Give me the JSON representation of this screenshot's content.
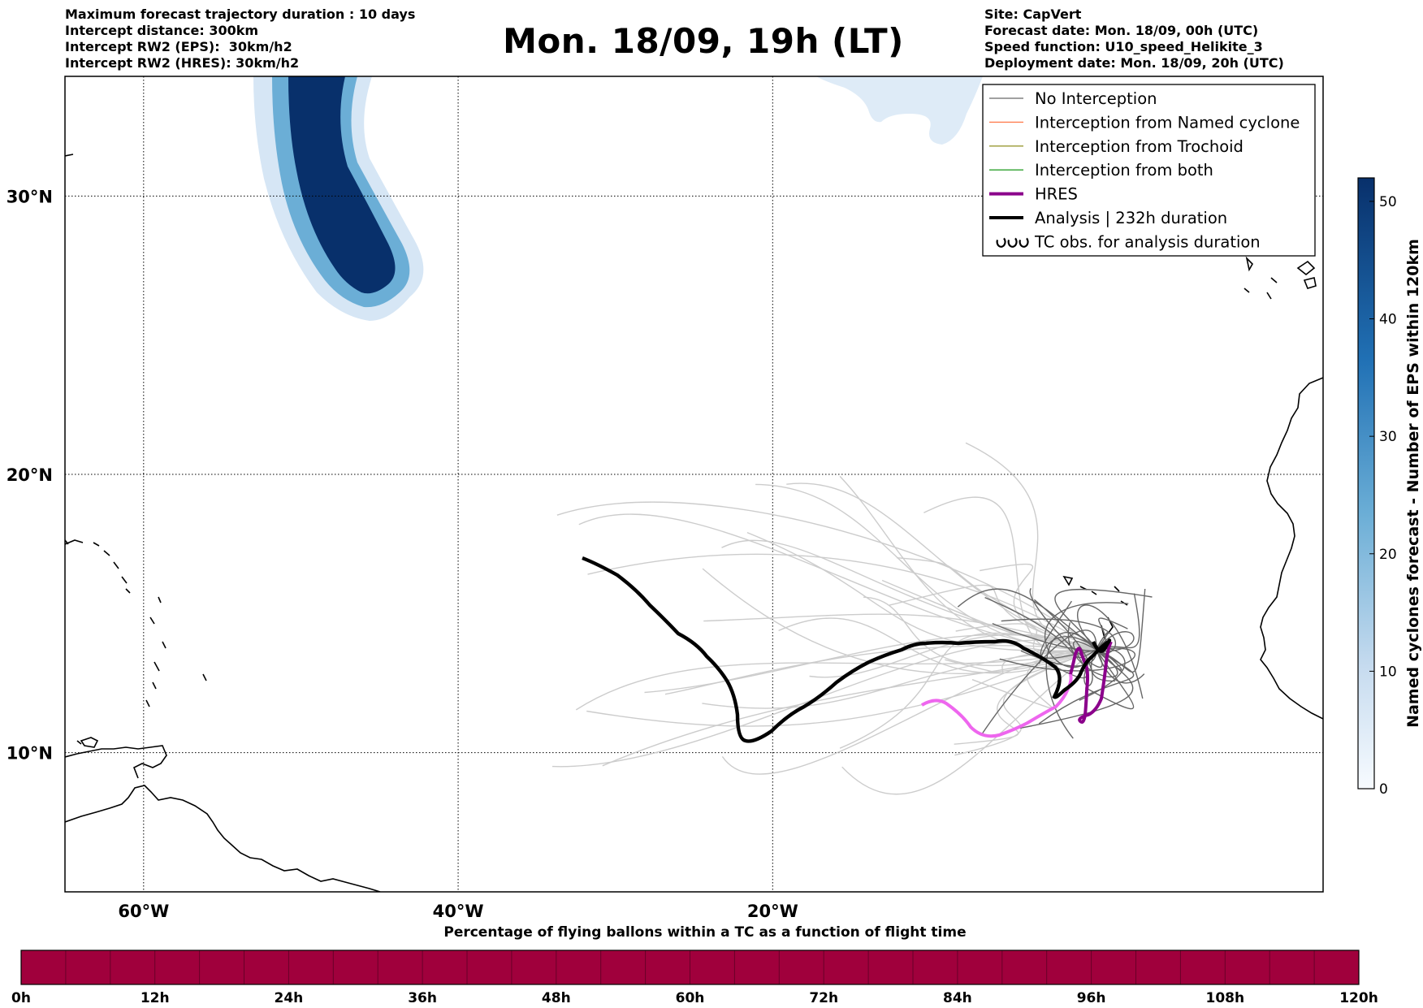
{
  "header": {
    "title": "Mon. 18/09, 19h (LT)",
    "left_lines": [
      "Maximum forecast trajectory duration : 10 days",
      "Intercept distance: 300km",
      "Intercept RW2 (EPS):  30km/h2",
      "Intercept RW2 (HRES): 30km/h2"
    ],
    "right_lines": [
      "Site: CapVert",
      "Forecast date: Mon. 18/09, 00h (UTC)",
      "Speed function: U10_speed_Helikite_3",
      "Deployment date: Mon. 18/09, 20h (UTC)"
    ]
  },
  "map": {
    "lon_range": [
      -65,
      15
    ],
    "lat_range": [
      5,
      34.3
    ],
    "lon_ticks": [
      {
        "value": -60,
        "label": "60°W"
      },
      {
        "value": -40,
        "label": "40°W"
      },
      {
        "value": -20,
        "label": "20°W"
      }
    ],
    "lat_ticks": [
      {
        "value": 30,
        "label": "30°N"
      },
      {
        "value": 20,
        "label": "20°N"
      },
      {
        "value": 10,
        "label": "10°N"
      }
    ],
    "colors": {
      "no_interception": "#808080",
      "named_cyclone": "#ff7f50",
      "trochoid": "#999933",
      "both": "#2ca02c",
      "hres": "#8b008b",
      "hres_early": "#ee66ee",
      "analysis": "#000000",
      "eps_light": "#cccccc",
      "eps_dark": "#666666"
    }
  },
  "legend": {
    "items": [
      {
        "label": "No Interception",
        "kind": "thin",
        "color": "#808080"
      },
      {
        "label": "Interception from Named cyclone",
        "kind": "thin",
        "color": "#ff7f50"
      },
      {
        "label": "Interception from Trochoid",
        "kind": "thin",
        "color": "#999933"
      },
      {
        "label": "Interception from both",
        "kind": "thin",
        "color": "#2ca02c"
      },
      {
        "label": "HRES",
        "kind": "thick",
        "color": "#8b008b"
      },
      {
        "label": "Analysis | 232h duration",
        "kind": "thick",
        "color": "#000000"
      },
      {
        "label": "TC obs. for analysis duration",
        "kind": "symbol",
        "color": "#000000"
      }
    ]
  },
  "colorbar": {
    "title": "Named cyclones forecast - Number of EPS within 120km",
    "min": 0,
    "max": 52,
    "ticks": [
      0,
      10,
      20,
      30,
      40,
      50
    ],
    "color_low": "#deebf7",
    "color_high": "#08306b"
  },
  "time_bar": {
    "title": "Percentage of flying ballons within a TC as a function of flight time",
    "color": "#a0003c",
    "tick_labels": [
      "0h",
      "12h",
      "24h",
      "36h",
      "48h",
      "60h",
      "72h",
      "84h",
      "96h",
      "108h",
      "120h"
    ]
  }
}
